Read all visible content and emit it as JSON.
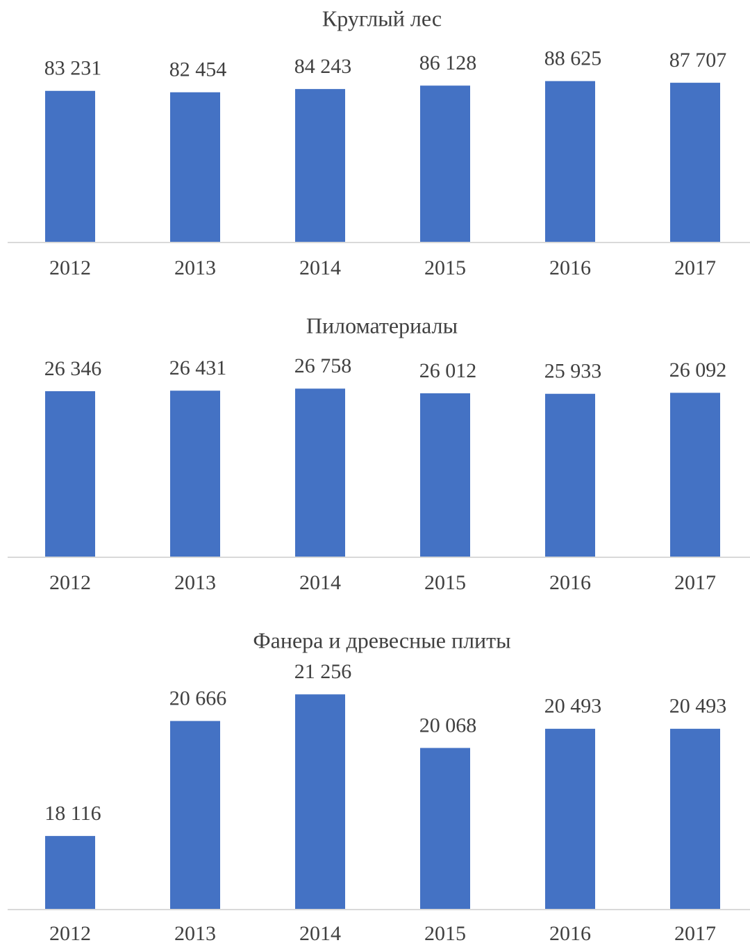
{
  "chart_data": [
    {
      "type": "bar",
      "title": "Круглый лес",
      "categories": [
        "2012",
        "2013",
        "2014",
        "2015",
        "2016",
        "2017"
      ],
      "values": [
        83231,
        82454,
        84243,
        86128,
        88625,
        87707
      ],
      "value_labels": [
        "83 231",
        "82 454",
        "84 243",
        "86 128",
        "88 625",
        "87 707"
      ],
      "color": "#4472c4",
      "ylim": [
        0,
        100000
      ]
    },
    {
      "type": "bar",
      "title": "Пиломатериалы",
      "categories": [
        "2012",
        "2013",
        "2014",
        "2015",
        "2016",
        "2017"
      ],
      "values": [
        26346,
        26431,
        26758,
        26012,
        25933,
        26092
      ],
      "value_labels": [
        "26 346",
        "26 431",
        "26 758",
        "26 012",
        "25 933",
        "26 092"
      ],
      "color": "#4472c4",
      "ylim": [
        0,
        30000
      ]
    },
    {
      "type": "bar",
      "title": "Фанера и древесные плиты",
      "categories": [
        "2012",
        "2013",
        "2014",
        "2015",
        "2016",
        "2017"
      ],
      "values": [
        18116,
        20666,
        21256,
        20068,
        20493,
        20493
      ],
      "value_labels": [
        "18 116",
        "20 666",
        "21 256",
        "20 068",
        "20 493",
        "20 493"
      ],
      "color": "#4472c4",
      "ylim": [
        16500,
        22000
      ]
    }
  ]
}
